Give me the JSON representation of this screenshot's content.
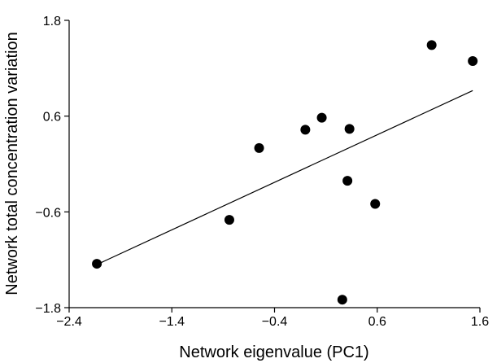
{
  "chart_data": {
    "type": "scatter",
    "title": "",
    "xlabel": "Network eigenvalue (PC1)",
    "ylabel": "Network total concentration variation",
    "xlim": [
      -2.4,
      1.6
    ],
    "ylim": [
      -1.8,
      1.8
    ],
    "x_ticks": [
      -2.4,
      -1.4,
      -0.4,
      0.6,
      1.6
    ],
    "x_tick_labels": [
      "−2.4",
      "−1.4",
      "−0.4",
      "0.6",
      "1.6"
    ],
    "y_ticks": [
      -1.8,
      -0.6,
      0.6,
      1.8
    ],
    "y_tick_labels": [
      "−1.8",
      "−0.6",
      "0.6",
      "1.8"
    ],
    "grid": false,
    "legend": "none",
    "points": [
      {
        "x": -2.13,
        "y": -1.25
      },
      {
        "x": -0.84,
        "y": -0.7
      },
      {
        "x": -0.55,
        "y": 0.2
      },
      {
        "x": -0.1,
        "y": 0.43
      },
      {
        "x": 0.06,
        "y": 0.58
      },
      {
        "x": 0.26,
        "y": -1.7
      },
      {
        "x": 0.31,
        "y": -0.21
      },
      {
        "x": 0.33,
        "y": 0.44
      },
      {
        "x": 0.58,
        "y": -0.5
      },
      {
        "x": 1.13,
        "y": 1.49
      },
      {
        "x": 1.53,
        "y": 1.29
      }
    ],
    "fit_line": {
      "x": [
        -2.13,
        1.53
      ],
      "y": [
        -1.26,
        0.92
      ]
    },
    "colors": {
      "points": "#000000",
      "line": "#000000",
      "axes": "#000000"
    }
  }
}
